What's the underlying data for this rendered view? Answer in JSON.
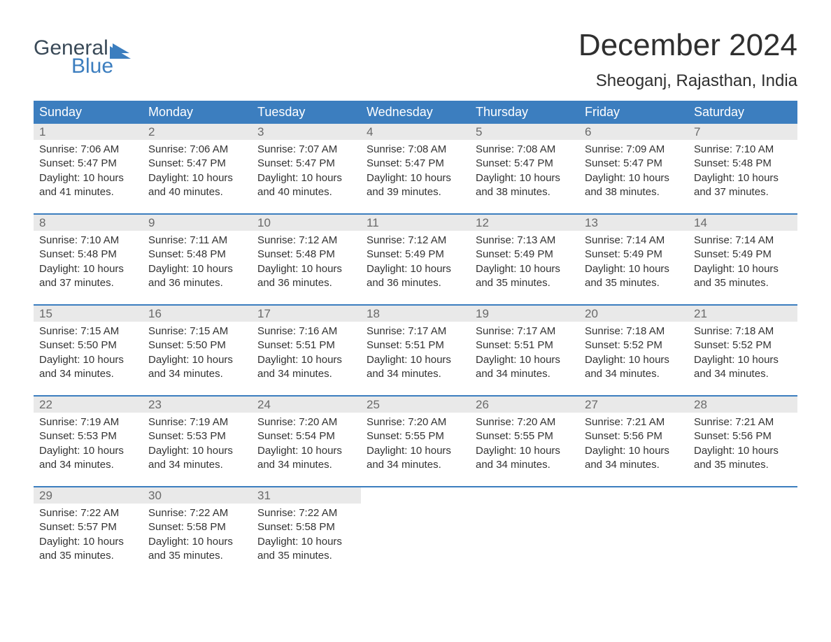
{
  "logo": {
    "line1": "General",
    "line2": "Blue"
  },
  "title": "December 2024",
  "location": "Sheoganj, Rajasthan, India",
  "colors": {
    "header_bg": "#3c7ebf",
    "header_text": "#ffffff",
    "daynum_bg": "#e9e9e9",
    "daynum_text": "#6a6a6a",
    "body_text": "#333333",
    "logo_gray": "#3a4a58",
    "logo_blue": "#3c7ebf",
    "rule": "#3c7ebf",
    "page_bg": "#ffffff"
  },
  "days_of_week": [
    "Sunday",
    "Monday",
    "Tuesday",
    "Wednesday",
    "Thursday",
    "Friday",
    "Saturday"
  ],
  "weeks": [
    [
      {
        "n": "1",
        "sunrise": "7:06 AM",
        "sunset": "5:47 PM",
        "dl": "10 hours and 41 minutes."
      },
      {
        "n": "2",
        "sunrise": "7:06 AM",
        "sunset": "5:47 PM",
        "dl": "10 hours and 40 minutes."
      },
      {
        "n": "3",
        "sunrise": "7:07 AM",
        "sunset": "5:47 PM",
        "dl": "10 hours and 40 minutes."
      },
      {
        "n": "4",
        "sunrise": "7:08 AM",
        "sunset": "5:47 PM",
        "dl": "10 hours and 39 minutes."
      },
      {
        "n": "5",
        "sunrise": "7:08 AM",
        "sunset": "5:47 PM",
        "dl": "10 hours and 38 minutes."
      },
      {
        "n": "6",
        "sunrise": "7:09 AM",
        "sunset": "5:47 PM",
        "dl": "10 hours and 38 minutes."
      },
      {
        "n": "7",
        "sunrise": "7:10 AM",
        "sunset": "5:48 PM",
        "dl": "10 hours and 37 minutes."
      }
    ],
    [
      {
        "n": "8",
        "sunrise": "7:10 AM",
        "sunset": "5:48 PM",
        "dl": "10 hours and 37 minutes."
      },
      {
        "n": "9",
        "sunrise": "7:11 AM",
        "sunset": "5:48 PM",
        "dl": "10 hours and 36 minutes."
      },
      {
        "n": "10",
        "sunrise": "7:12 AM",
        "sunset": "5:48 PM",
        "dl": "10 hours and 36 minutes."
      },
      {
        "n": "11",
        "sunrise": "7:12 AM",
        "sunset": "5:49 PM",
        "dl": "10 hours and 36 minutes."
      },
      {
        "n": "12",
        "sunrise": "7:13 AM",
        "sunset": "5:49 PM",
        "dl": "10 hours and 35 minutes."
      },
      {
        "n": "13",
        "sunrise": "7:14 AM",
        "sunset": "5:49 PM",
        "dl": "10 hours and 35 minutes."
      },
      {
        "n": "14",
        "sunrise": "7:14 AM",
        "sunset": "5:49 PM",
        "dl": "10 hours and 35 minutes."
      }
    ],
    [
      {
        "n": "15",
        "sunrise": "7:15 AM",
        "sunset": "5:50 PM",
        "dl": "10 hours and 34 minutes."
      },
      {
        "n": "16",
        "sunrise": "7:15 AM",
        "sunset": "5:50 PM",
        "dl": "10 hours and 34 minutes."
      },
      {
        "n": "17",
        "sunrise": "7:16 AM",
        "sunset": "5:51 PM",
        "dl": "10 hours and 34 minutes."
      },
      {
        "n": "18",
        "sunrise": "7:17 AM",
        "sunset": "5:51 PM",
        "dl": "10 hours and 34 minutes."
      },
      {
        "n": "19",
        "sunrise": "7:17 AM",
        "sunset": "5:51 PM",
        "dl": "10 hours and 34 minutes."
      },
      {
        "n": "20",
        "sunrise": "7:18 AM",
        "sunset": "5:52 PM",
        "dl": "10 hours and 34 minutes."
      },
      {
        "n": "21",
        "sunrise": "7:18 AM",
        "sunset": "5:52 PM",
        "dl": "10 hours and 34 minutes."
      }
    ],
    [
      {
        "n": "22",
        "sunrise": "7:19 AM",
        "sunset": "5:53 PM",
        "dl": "10 hours and 34 minutes."
      },
      {
        "n": "23",
        "sunrise": "7:19 AM",
        "sunset": "5:53 PM",
        "dl": "10 hours and 34 minutes."
      },
      {
        "n": "24",
        "sunrise": "7:20 AM",
        "sunset": "5:54 PM",
        "dl": "10 hours and 34 minutes."
      },
      {
        "n": "25",
        "sunrise": "7:20 AM",
        "sunset": "5:55 PM",
        "dl": "10 hours and 34 minutes."
      },
      {
        "n": "26",
        "sunrise": "7:20 AM",
        "sunset": "5:55 PM",
        "dl": "10 hours and 34 minutes."
      },
      {
        "n": "27",
        "sunrise": "7:21 AM",
        "sunset": "5:56 PM",
        "dl": "10 hours and 34 minutes."
      },
      {
        "n": "28",
        "sunrise": "7:21 AM",
        "sunset": "5:56 PM",
        "dl": "10 hours and 35 minutes."
      }
    ],
    [
      {
        "n": "29",
        "sunrise": "7:22 AM",
        "sunset": "5:57 PM",
        "dl": "10 hours and 35 minutes."
      },
      {
        "n": "30",
        "sunrise": "7:22 AM",
        "sunset": "5:58 PM",
        "dl": "10 hours and 35 minutes."
      },
      {
        "n": "31",
        "sunrise": "7:22 AM",
        "sunset": "5:58 PM",
        "dl": "10 hours and 35 minutes."
      },
      null,
      null,
      null,
      null
    ]
  ],
  "labels": {
    "sunrise": "Sunrise: ",
    "sunset": "Sunset: ",
    "daylight": "Daylight: "
  }
}
